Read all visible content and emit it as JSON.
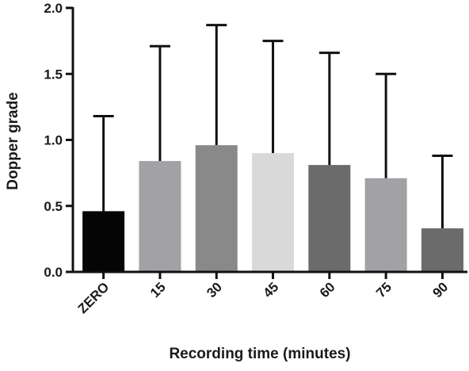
{
  "chart_data": {
    "type": "bar",
    "xlabel": "Recording time (minutes)",
    "ylabel": "Dopper grade",
    "ylim": [
      0,
      2.0
    ],
    "yticks": [
      "0.0",
      "0.5",
      "1.0",
      "1.5",
      "2.0"
    ],
    "ytick_values": [
      0,
      0.5,
      1.0,
      1.5,
      2.0
    ],
    "categories": [
      "ZERO",
      "15",
      "30",
      "45",
      "60",
      "75",
      "90"
    ],
    "values": [
      0.46,
      0.84,
      0.96,
      0.9,
      0.81,
      0.71,
      0.33
    ],
    "error_upper": [
      1.18,
      1.71,
      1.87,
      1.75,
      1.66,
      1.5,
      0.88
    ],
    "colors": [
      "#050505",
      "#a2a2a5",
      "#898989",
      "#d9d9d9",
      "#6b6b6b",
      "#a2a2a5",
      "#6b6b6b"
    ],
    "grid": false,
    "legend": "none"
  }
}
